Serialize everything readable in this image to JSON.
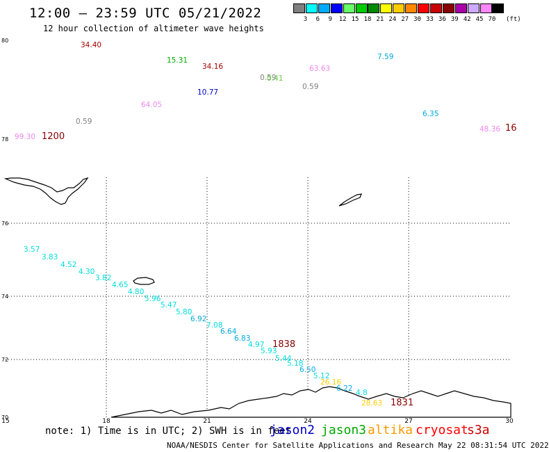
{
  "title": "12:00 – 23:59 UTC 05/21/2022",
  "subtitle": "12 hour collection of altimeter wave heights",
  "color_scale": {
    "labels": [
      "3",
      "6",
      "9",
      "12",
      "15",
      "18",
      "21",
      "24",
      "27",
      "30",
      "33",
      "36",
      "39",
      "42",
      "45",
      "70",
      "(ft)"
    ],
    "colors": [
      "#808080",
      "#00ffff",
      "#00aaff",
      "#0000ff",
      "#66ff66",
      "#00cc00",
      "#008800",
      "#ffff00",
      "#ffcc00",
      "#ff8800",
      "#ff0000",
      "#cc0000",
      "#880000",
      "#aa00aa",
      "#ccaaff",
      "#ff88ff",
      "#000000"
    ]
  },
  "axes": {
    "lat_labels": [
      "80",
      "78",
      "76",
      "74",
      "72",
      "70"
    ],
    "lon_labels": [
      "15",
      "18",
      "21",
      "24",
      "27",
      "30"
    ]
  },
  "observations": [
    {
      "text": "34.40",
      "color": "#aa0000"
    },
    {
      "text": "15.31",
      "color": "#00aa00"
    },
    {
      "text": "34.16",
      "color": "#aa0000"
    },
    {
      "text": "0.59",
      "color": "#808080"
    },
    {
      "text": "0.41",
      "color": "#66cc44"
    },
    {
      "text": "63.63",
      "color": "#ee88ee"
    },
    {
      "text": "7.59",
      "color": "#00aadd"
    },
    {
      "text": "10.77",
      "color": "#0000cc"
    },
    {
      "text": "0.59",
      "color": "#808080"
    },
    {
      "text": "64.05",
      "color": "#ee88ee"
    },
    {
      "text": "6.35",
      "color": "#00aadd"
    },
    {
      "text": "0.59",
      "color": "#808080"
    },
    {
      "text": "48.36",
      "color": "#ee88ee"
    },
    {
      "text": "16",
      "color": "#880000"
    },
    {
      "text": "99.30",
      "color": "#ee88ee"
    },
    {
      "text": "1200",
      "color": "#880000"
    },
    {
      "text": "3.57",
      "color": "#00dddd"
    },
    {
      "text": "3.83",
      "color": "#00dddd"
    },
    {
      "text": "4.52",
      "color": "#00dddd"
    },
    {
      "text": "4.30",
      "color": "#00dddd"
    },
    {
      "text": "3.82",
      "color": "#00dddd"
    },
    {
      "text": "4.65",
      "color": "#00dddd"
    },
    {
      "text": "4.80",
      "color": "#00dddd"
    },
    {
      "text": "5.96",
      "color": "#00dddd"
    },
    {
      "text": "5.47",
      "color": "#00dddd"
    },
    {
      "text": "5.80",
      "color": "#00dddd"
    },
    {
      "text": "6.92",
      "color": "#00aadd"
    },
    {
      "text": "7.08",
      "color": "#00dddd"
    },
    {
      "text": "6.64",
      "color": "#00aadd"
    },
    {
      "text": "6.83",
      "color": "#00aadd"
    },
    {
      "text": "4.97",
      "color": "#00dddd"
    },
    {
      "text": "1838",
      "color": "#880000"
    },
    {
      "text": "5.93",
      "color": "#00dddd"
    },
    {
      "text": "5.44",
      "color": "#00dddd"
    },
    {
      "text": "5.18",
      "color": "#00dddd"
    },
    {
      "text": "6.50",
      "color": "#00aadd"
    },
    {
      "text": "5.12",
      "color": "#00dddd"
    },
    {
      "text": "26.16",
      "color": "#ffcc00"
    },
    {
      "text": "6.22",
      "color": "#00aadd"
    },
    {
      "text": "4.8",
      "color": "#00dddd"
    },
    {
      "text": "28.63",
      "color": "#ffcc00"
    },
    {
      "text": "1831",
      "color": "#880000"
    }
  ],
  "note": "note: 1) Time is in UTC; 2) SWH is in feet",
  "satellites": [
    {
      "name": "jason2",
      "color": "#0000cc"
    },
    {
      "name": "jason3",
      "color": "#00aa00"
    },
    {
      "name": "altika",
      "color": "#ff9900"
    },
    {
      "name": "cryosat",
      "color": "#ff0000"
    },
    {
      "name": "s3a",
      "color": "#cc0000"
    }
  ],
  "footer": "NOAA/NESDIS Center for Satellite Applications and Research    May 22 08:31:54 UTC 2022"
}
